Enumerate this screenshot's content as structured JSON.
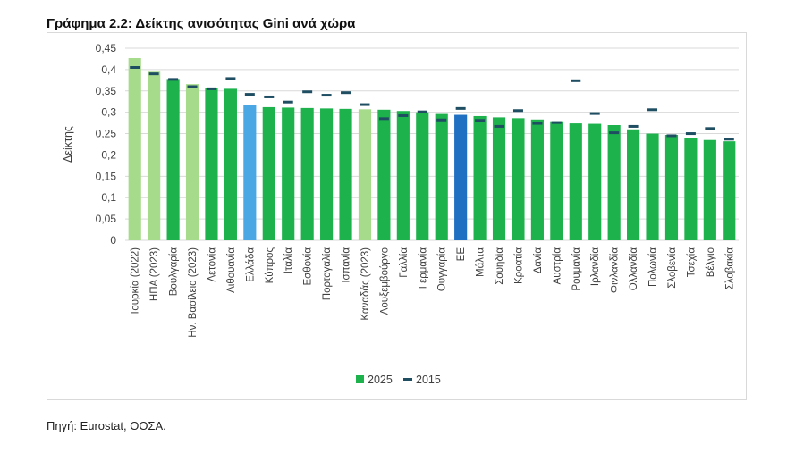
{
  "title": "Γράφημα 2.2: Δείκτης ανισότητας Gini ανά χώρα",
  "source": "Πηγή: Eurostat, ΟΟΣΑ.",
  "colors": {
    "bar_default": "#1db24c",
    "bar_light": "#a7db8c",
    "bar_greece": "#4aa7e3",
    "bar_eu": "#1f6fc3",
    "marker_2015": "#1f4e63",
    "grid": "#d9d9d9"
  },
  "chart_data": {
    "type": "bar",
    "title": "Γράφημα 2.2: Δείκτης ανισότητας Gini ανά χώρα",
    "xlabel": "",
    "ylabel": "Δείκτης",
    "ylim": [
      0,
      0.45
    ],
    "yticks": [
      0,
      0.05,
      0.1,
      0.15,
      0.2,
      0.25,
      0.3,
      0.35,
      0.4,
      0.45
    ],
    "ytick_labels": [
      "0",
      "0,05",
      "0,1",
      "0,15",
      "0,2",
      "0,25",
      "0,3",
      "0,35",
      "0,4",
      "0,45"
    ],
    "grid": true,
    "legend_position": "bottom",
    "categories": [
      "Τουρκία (2022)",
      "ΗΠΑ (2023)",
      "Βουλγαρία",
      "Ην. Βασίλειο (2023)",
      "Λετονία",
      "Λιθουανία",
      "Ελλάδα",
      "Κύπρος",
      "Ιταλία",
      "Εσθονία",
      "Πορτογαλία",
      "Ισπανία",
      "Καναδάς (2023)",
      "Λουξεμβούργο",
      "Γαλλία",
      "Γερμανία",
      "Ουγγαρία",
      "ΕΕ",
      "Μάλτα",
      "Σουηδία",
      "Κροατία",
      "Δανία",
      "Αυστρία",
      "Ρουμανία",
      "Ιρλανδία",
      "Φινλανδία",
      "Ολλανδία",
      "Πολωνία",
      "Σλοβενία",
      "Τσεχία",
      "Βέλγιο",
      "Σλοβακία"
    ],
    "bar_styles": [
      "light",
      "light",
      "default",
      "light",
      "default",
      "default",
      "greece",
      "default",
      "default",
      "default",
      "default",
      "default",
      "light",
      "default",
      "default",
      "default",
      "default",
      "eu",
      "default",
      "default",
      "default",
      "default",
      "default",
      "default",
      "default",
      "default",
      "default",
      "default",
      "default",
      "default",
      "default",
      "default"
    ],
    "series": [
      {
        "name": "2025",
        "type": "bar",
        "values": [
          0.427,
          0.395,
          0.378,
          0.366,
          0.356,
          0.355,
          0.317,
          0.312,
          0.311,
          0.31,
          0.309,
          0.308,
          0.307,
          0.306,
          0.303,
          0.3,
          0.296,
          0.294,
          0.291,
          0.288,
          0.286,
          0.283,
          0.279,
          0.274,
          0.273,
          0.27,
          0.26,
          0.25,
          0.247,
          0.24,
          0.235,
          0.232
        ]
      },
      {
        "name": "2015",
        "type": "marker",
        "values": [
          0.405,
          0.39,
          0.377,
          0.36,
          0.355,
          0.379,
          0.342,
          0.336,
          0.324,
          0.348,
          0.34,
          0.346,
          0.318,
          0.285,
          0.292,
          0.301,
          0.282,
          0.309,
          0.281,
          0.267,
          0.304,
          0.274,
          0.276,
          0.374,
          0.297,
          0.252,
          0.267,
          0.306,
          0.245,
          0.25,
          0.262,
          0.237
        ]
      }
    ]
  }
}
